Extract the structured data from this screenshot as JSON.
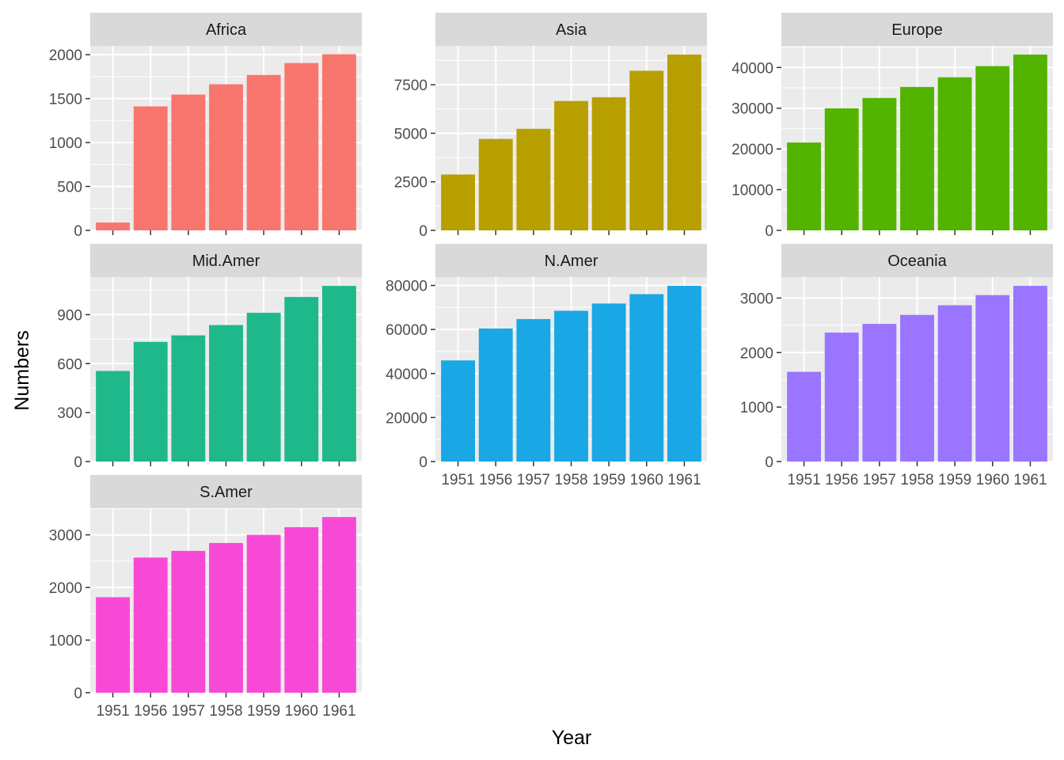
{
  "chart_data": {
    "type": "bar",
    "facet": true,
    "xlabel": "Year",
    "ylabel": "Numbers",
    "categories": [
      "1951",
      "1956",
      "1957",
      "1958",
      "1959",
      "1960",
      "1961"
    ],
    "grid": true,
    "legend": "none",
    "panels": [
      {
        "name": "Africa",
        "color": "#F8766D",
        "values": [
          89,
          1411,
          1546,
          1663,
          1769,
          1905,
          2005
        ],
        "yticks": [
          0,
          500,
          1000,
          1500,
          2000
        ],
        "ylim": [
          0,
          2100
        ],
        "show_x_ticklabels": false
      },
      {
        "name": "Asia",
        "color": "#B79F00",
        "values": [
          2876,
          4708,
          5230,
          6662,
          6856,
          8220,
          9053
        ],
        "yticks": [
          0,
          2500,
          5000,
          7500
        ],
        "ylim": [
          0,
          9500
        ],
        "show_x_ticklabels": false
      },
      {
        "name": "Europe",
        "color": "#53B400",
        "values": [
          21574,
          29990,
          32510,
          35218,
          37598,
          40341,
          43173
        ],
        "yticks": [
          0,
          10000,
          20000,
          30000,
          40000
        ],
        "ylim": [
          0,
          45300
        ],
        "show_x_ticklabels": false
      },
      {
        "name": "Mid.Amer",
        "color": "#1FB88A",
        "values": [
          555,
          733,
          773,
          836,
          911,
          1008,
          1076
        ],
        "yticks": [
          0,
          300,
          600,
          900
        ],
        "ylim": [
          0,
          1130
        ],
        "show_x_ticklabels": false
      },
      {
        "name": "N.Amer",
        "color": "#19A7E6",
        "values": [
          45939,
          60423,
          64721,
          68484,
          71799,
          76036,
          79831
        ],
        "yticks": [
          0,
          20000,
          40000,
          60000,
          80000
        ],
        "ylim": [
          0,
          83800
        ],
        "show_x_ticklabels": true
      },
      {
        "name": "Oceania",
        "color": "#9A75FF",
        "values": [
          1646,
          2366,
          2526,
          2691,
          2868,
          3054,
          3224
        ],
        "yticks": [
          0,
          1000,
          2000,
          3000
        ],
        "ylim": [
          0,
          3385
        ],
        "show_x_ticklabels": true
      },
      {
        "name": "S.Amer",
        "color": "#F849D6",
        "values": [
          1815,
          2568,
          2695,
          2845,
          3000,
          3145,
          3338
        ],
        "yticks": [
          0,
          1000,
          2000,
          3000
        ],
        "ylim": [
          0,
          3505
        ],
        "show_x_ticklabels": true
      }
    ]
  }
}
